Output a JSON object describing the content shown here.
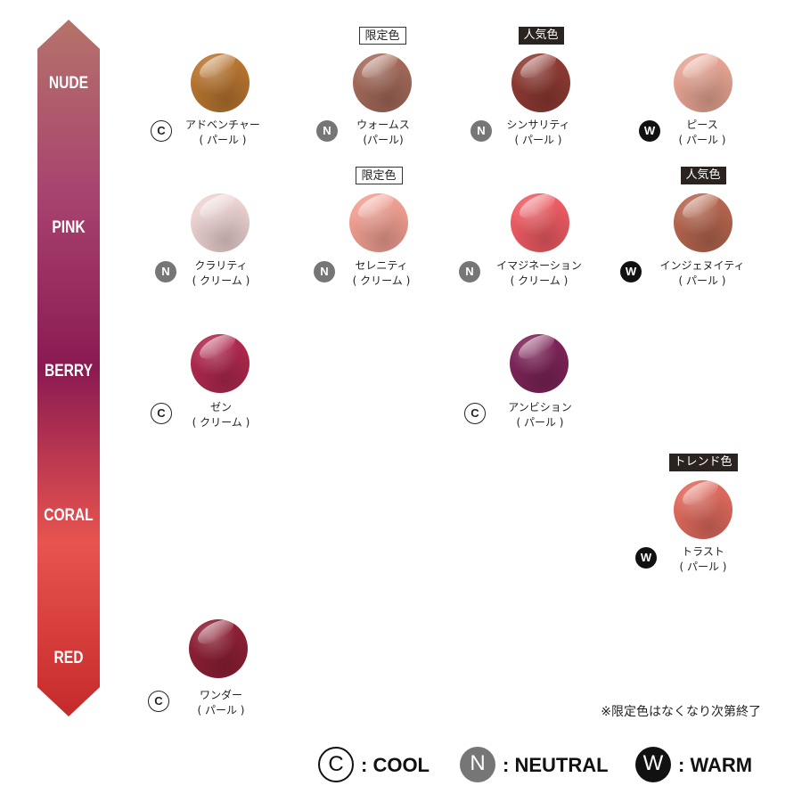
{
  "categories": [
    {
      "label": "NUDE"
    },
    {
      "label": "PINK"
    },
    {
      "label": "BERRY"
    },
    {
      "label": "CORAL"
    },
    {
      "label": "RED"
    }
  ],
  "scale_colors": [
    "#b5736a",
    "#a8436f",
    "#8a1a52",
    "#e8544f",
    "#c52a2a"
  ],
  "shades": [
    {
      "name": "アドベンチャー",
      "finish": "( パール )",
      "tone": "C",
      "color": "#b87530",
      "tag": ""
    },
    {
      "name": "ウォームス",
      "finish": "(パール)",
      "tone": "N",
      "color": "#a36a5a",
      "tag": "限定色"
    },
    {
      "name": "シンサリティ",
      "finish": "( パール )",
      "tone": "N",
      "color": "#8e3a33",
      "tag": "人気色"
    },
    {
      "name": "ピース",
      "finish": "( パール )",
      "tone": "W",
      "color": "#e6a493",
      "tag": ""
    },
    {
      "name": "クラリティ",
      "finish": "( クリーム )",
      "tone": "N",
      "color": "#ecd2d1",
      "tag": ""
    },
    {
      "name": "セレニティ",
      "finish": "( クリーム )",
      "tone": "N",
      "color": "#f19f92",
      "tag": "限定色"
    },
    {
      "name": "イマジネーション",
      "finish": "( クリーム )",
      "tone": "N",
      "color": "#ee5c63",
      "tag": ""
    },
    {
      "name": "インジェヌイティ",
      "finish": "( パール )",
      "tone": "W",
      "color": "#b5664f",
      "tag": "人気色"
    },
    {
      "name": "ゼン",
      "finish": "( クリーム )",
      "tone": "C",
      "color": "#b0284e",
      "tag": ""
    },
    {
      "name": "アンビション",
      "finish": "( パール )",
      "tone": "C",
      "color": "#7d2458",
      "tag": ""
    },
    {
      "name": "トラスト",
      "finish": "( パール )",
      "tone": "W",
      "color": "#df6a5d",
      "tag": "トレンド色"
    },
    {
      "name": "ワンダー",
      "finish": "( パール )",
      "tone": "C",
      "color": "#8e1f35",
      "tag": ""
    }
  ],
  "footnote": "※限定色はなくなり次第終了",
  "legend": [
    {
      "badge": "C",
      "label": ": COOL"
    },
    {
      "badge": "N",
      "label": ": NEUTRAL"
    },
    {
      "badge": "W",
      "label": ": WARM"
    }
  ]
}
